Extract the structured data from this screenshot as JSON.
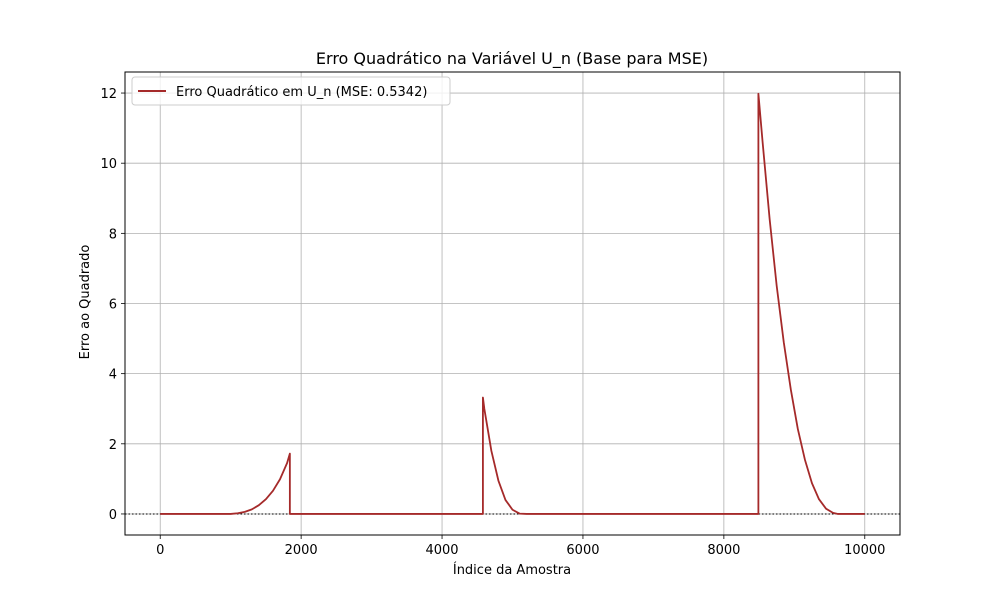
{
  "chart_data": {
    "type": "line",
    "title": "Erro Quadrático na Variável U_n (Base para MSE)",
    "xlabel": "Índice da Amostra",
    "ylabel": "Erro ao Quadrado",
    "xlim": [
      -500,
      10500
    ],
    "ylim": [
      -0.6,
      12.6
    ],
    "x_ticks": [
      0,
      2000,
      4000,
      6000,
      8000,
      10000
    ],
    "y_ticks": [
      0,
      2,
      4,
      6,
      8,
      10,
      12
    ],
    "x_tick_labels": [
      "0",
      "2000",
      "4000",
      "6000",
      "8000",
      "10000"
    ],
    "y_tick_labels": [
      "0",
      "2",
      "4",
      "6",
      "8",
      "10",
      "12"
    ],
    "grid": true,
    "legend_position": "top-left",
    "reference_line": {
      "y": 0,
      "style": "dotted",
      "color": "#000000"
    },
    "series": [
      {
        "name": "Erro Quadrático em U_n (MSE: 0.5342)",
        "color": "#a52a2a",
        "x": [
          0,
          1000,
          1100,
          1200,
          1300,
          1400,
          1500,
          1600,
          1700,
          1800,
          1840,
          1840,
          4580,
          4580,
          4600,
          4700,
          4800,
          4900,
          5000,
          5100,
          5200,
          8490,
          8490,
          8550,
          8650,
          8750,
          8850,
          8950,
          9050,
          9150,
          9250,
          9350,
          9450,
          9550,
          9620,
          10000
        ],
        "y": [
          0,
          0.0,
          0.02,
          0.06,
          0.13,
          0.25,
          0.42,
          0.66,
          0.99,
          1.45,
          1.72,
          0,
          0,
          3.32,
          3.0,
          1.8,
          0.95,
          0.4,
          0.12,
          0.01,
          0,
          0,
          11.98,
          10.6,
          8.4,
          6.5,
          4.9,
          3.55,
          2.42,
          1.55,
          0.88,
          0.42,
          0.15,
          0.03,
          0,
          0
        ]
      }
    ]
  }
}
